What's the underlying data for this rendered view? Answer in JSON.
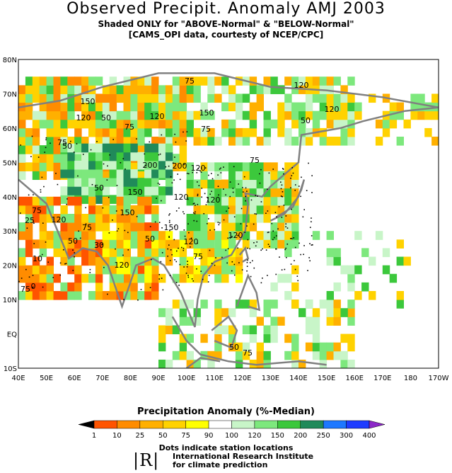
{
  "header": {
    "title": "Observed Precipit. Anomaly AMJ 2003",
    "subtitle1": "Shaded ONLY for \"ABOVE-Normal\" & \"BELOW-Normal\"",
    "subtitle2": "[CAMS_OPI data, courtesty of NCEP/CPC]"
  },
  "map": {
    "lat_labels": [
      "80N",
      "70N",
      "60N",
      "50N",
      "40N",
      "30N",
      "20N",
      "10N",
      "EQ",
      "10S"
    ],
    "lon_labels": [
      "40E",
      "50E",
      "60E",
      "70E",
      "80E",
      "90E",
      "100E",
      "110E",
      "120E",
      "130E",
      "140E",
      "150E",
      "160E",
      "170E",
      "180",
      "170W"
    ],
    "contour_labels": [
      "75",
      "150",
      "120",
      "120",
      "50",
      "75",
      "150",
      "75",
      "120",
      "120",
      "50",
      "75",
      "50",
      "75",
      "120",
      "200",
      "200",
      "120",
      "50",
      "150",
      "75",
      "120",
      "25",
      "150",
      "75",
      "50",
      "30",
      "50",
      "120",
      "150",
      "120",
      "120",
      "75",
      "10",
      "0",
      "75",
      "50",
      "75",
      "120"
    ],
    "land_color": "#ffffff",
    "coast_color": "#808080"
  },
  "legend": {
    "title": "Precipitation Anomaly (%-Median)",
    "ticks": [
      "1",
      "10",
      "25",
      "50",
      "75",
      "90",
      "100",
      "120",
      "150",
      "200",
      "250",
      "300",
      "400"
    ],
    "colors": [
      "#000000",
      "#ff5400",
      "#ff8c00",
      "#ffb000",
      "#ffd200",
      "#ffff00",
      "#ffffff",
      "#c8f5c8",
      "#7de87d",
      "#3cc83c",
      "#208a5a",
      "#1e78ff",
      "#1e3cff",
      "#8c28c8"
    ],
    "dots_note": "Dots indicate station locations",
    "institute_logo": "|R|",
    "institute_line1": "International Research Institute",
    "institute_line2": "for climate prediction"
  }
}
